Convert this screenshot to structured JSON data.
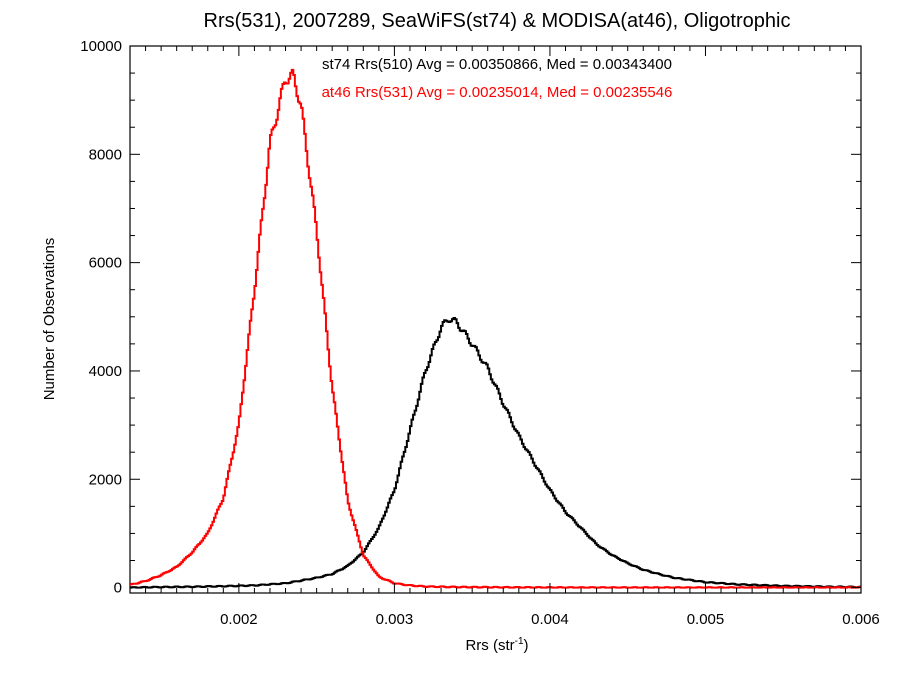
{
  "chart_data": {
    "type": "line",
    "title": "Rrs(531), 2007289, SeaWiFS(st74) & MODISA(at46), Oligotrophic",
    "xlabel_main": "Rrs (str",
    "xlabel_sup": "-1",
    "xlabel_close": ")",
    "ylabel": "Number of Observations",
    "xlim": [
      0.0013,
      0.006
    ],
    "ylim": [
      -100,
      10000
    ],
    "x_ticks": [
      0.002,
      0.003,
      0.004,
      0.005,
      0.006
    ],
    "x_tick_labels": [
      "0.002",
      "0.003",
      "0.004",
      "0.005",
      "0.006"
    ],
    "y_ticks": [
      0,
      2000,
      4000,
      6000,
      8000,
      10000
    ],
    "y_tick_labels": [
      "0",
      "2000",
      "4000",
      "6000",
      "8000",
      "10000"
    ],
    "grid": false,
    "annotations": [
      {
        "text": "st74 Rrs(510) Avg = 0.00350866, Med = 0.00343400",
        "color": "#000000"
      },
      {
        "text": "at46 Rrs(531) Avg = 0.00235014, Med = 0.00235546",
        "color": "#ff0000"
      }
    ],
    "series": [
      {
        "color": "#000000",
        "step": true,
        "x": [
          0.0013,
          0.0015,
          0.0017,
          0.0019,
          0.0021,
          0.0023,
          0.0025,
          0.0026,
          0.0027,
          0.0028,
          0.0029,
          0.003,
          0.0031,
          0.0032,
          0.0033,
          0.00335,
          0.0034,
          0.0035,
          0.0036,
          0.0037,
          0.0038,
          0.0039,
          0.004,
          0.0041,
          0.0042,
          0.0043,
          0.0044,
          0.0045,
          0.0046,
          0.0047,
          0.0048,
          0.005,
          0.0052,
          0.0055,
          0.0058,
          0.006
        ],
        "y": [
          0,
          10,
          15,
          25,
          40,
          80,
          180,
          250,
          400,
          650,
          1100,
          1800,
          2900,
          4000,
          4800,
          4970,
          4900,
          4500,
          4050,
          3400,
          2800,
          2300,
          1800,
          1400,
          1100,
          800,
          600,
          450,
          330,
          250,
          180,
          100,
          60,
          30,
          15,
          10
        ]
      },
      {
        "color": "#ff0000",
        "step": true,
        "x": [
          0.0013,
          0.0014,
          0.0015,
          0.0016,
          0.0017,
          0.0018,
          0.0019,
          0.002,
          0.0021,
          0.0022,
          0.0023,
          0.00235,
          0.0024,
          0.0025,
          0.0026,
          0.0027,
          0.0028,
          0.0029,
          0.003,
          0.0031,
          0.0032,
          0.0034,
          0.0037,
          0.004,
          0.0045,
          0.005,
          0.006
        ],
        "y": [
          50,
          120,
          230,
          380,
          650,
          1000,
          1650,
          3000,
          5500,
          8200,
          9400,
          9450,
          8900,
          6600,
          3700,
          1600,
          600,
          200,
          80,
          40,
          20,
          10,
          5,
          2,
          0,
          0,
          0
        ]
      }
    ]
  }
}
